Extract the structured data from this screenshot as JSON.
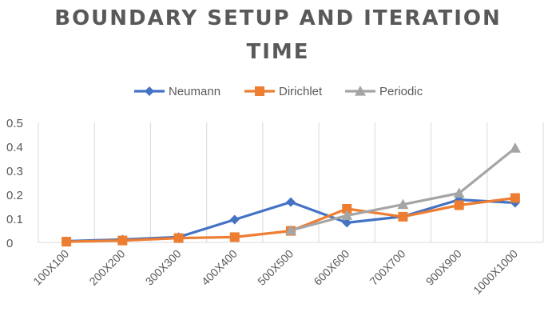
{
  "chart_data": {
    "type": "line",
    "title_lines": [
      "BOUNDARY SETUP AND ITERATION",
      "TIME"
    ],
    "xlabel": "",
    "ylabel": "",
    "categories": [
      "100X100",
      "200X200",
      "300X300",
      "400X400",
      "500X500",
      "600X600",
      "700X700",
      "900X900",
      "1000X1000"
    ],
    "ylim": [
      0,
      0.5
    ],
    "yticks": [
      "0",
      "0.1",
      "0.2",
      "0.3",
      "0.4",
      "0.5"
    ],
    "grid": "vertical",
    "legend_position": "top",
    "series": [
      {
        "name": "Neumann",
        "color": "#4472C4",
        "marker": "diamond",
        "values": [
          0.005,
          0.012,
          0.022,
          0.095,
          0.168,
          0.082,
          0.108,
          0.178,
          0.165
        ]
      },
      {
        "name": "Dirichlet",
        "color": "#ED7D31",
        "marker": "square",
        "values": [
          0.003,
          0.008,
          0.018,
          0.022,
          0.048,
          0.14,
          0.107,
          0.155,
          0.185
        ]
      },
      {
        "name": "Periodic",
        "color": "#A5A5A5",
        "marker": "triangle",
        "values": [
          null,
          null,
          null,
          null,
          0.05,
          0.112,
          0.158,
          0.205,
          0.393
        ]
      }
    ]
  }
}
